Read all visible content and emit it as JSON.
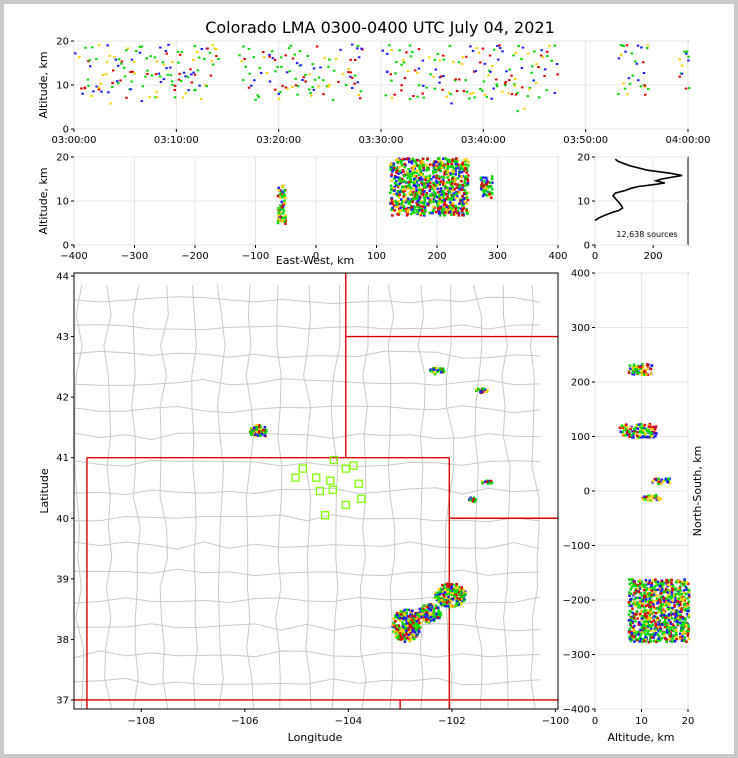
{
  "chart_data": {
    "type": "scatter",
    "title": "Colorado LMA 0300-0400 UTC July 04, 2021",
    "source_count_label": "12,638 sources",
    "colors": {
      "early": "#1a1aff",
      "mid": "#00d800",
      "late": "#ffd000",
      "latest": "#e00000",
      "border": "#e00000",
      "counties": "#c8c8c8",
      "stations": "#7fff00"
    },
    "panels": {
      "time_altitude": {
        "xlabel": "",
        "ylabel": "Altitude, km",
        "xlim": [
          "03:00:00",
          "04:00:00"
        ],
        "ylim": [
          0,
          20
        ],
        "xticks": [
          "03:00:00",
          "03:10:00",
          "03:20:00",
          "03:30:00",
          "03:40:00",
          "03:50:00",
          "04:00:00"
        ],
        "yticks": [
          "0",
          "10",
          "20"
        ],
        "active_intervals_min": [
          [
            0,
            14
          ],
          [
            16,
            28
          ],
          [
            30,
            47
          ],
          [
            53,
            56
          ],
          [
            59,
            60
          ]
        ]
      },
      "ew_altitude": {
        "xlabel": "East-West, km",
        "ylabel": "Altitude, km",
        "xlim": [
          -400,
          400
        ],
        "ylim": [
          0,
          20
        ],
        "xticks": [
          "−400",
          "−300",
          "−200",
          "−100",
          "0",
          "100",
          "200",
          "300",
          "400"
        ],
        "yticks": [
          "0",
          "10",
          "20"
        ],
        "clusters": [
          {
            "x": [
              -65,
              -52
            ],
            "z": [
              5,
              14
            ]
          },
          {
            "x": [
              120,
              250
            ],
            "z": [
              7,
              20
            ]
          },
          {
            "x": [
              270,
              290
            ],
            "z": [
              11,
              16
            ]
          }
        ]
      },
      "histogram": {
        "xticks": [
          "0",
          "200"
        ],
        "yticks": [
          "0",
          "10",
          "20"
        ],
        "xlim": [
          0,
          320
        ],
        "ylim": [
          0,
          20
        ],
        "profile": [
          [
            0,
            5.6
          ],
          [
            15,
            6.2
          ],
          [
            35,
            6.8
          ],
          [
            60,
            7.4
          ],
          [
            80,
            7.8
          ],
          [
            95,
            8.4
          ],
          [
            88,
            9.2
          ],
          [
            75,
            10.2
          ],
          [
            62,
            11.2
          ],
          [
            70,
            11.8
          ],
          [
            105,
            12.4
          ],
          [
            125,
            12.9
          ],
          [
            150,
            13.3
          ],
          [
            200,
            13.7
          ],
          [
            240,
            14.1
          ],
          [
            210,
            14.6
          ],
          [
            230,
            15.0
          ],
          [
            265,
            15.4
          ],
          [
            300,
            15.8
          ],
          [
            260,
            16.3
          ],
          [
            180,
            17.0
          ],
          [
            120,
            18.0
          ],
          [
            80,
            19.0
          ],
          [
            70,
            19.5
          ]
        ]
      },
      "plan_view": {
        "xlabel": "Longitude",
        "ylabel": "Latitude",
        "xlim": [
          -109.3,
          -99.95
        ],
        "ylim": [
          36.85,
          44.05
        ],
        "xticks": [
          "−108",
          "−106",
          "−104",
          "−102",
          "−100"
        ],
        "yticks": [
          "37",
          "38",
          "39",
          "40",
          "41",
          "42",
          "43",
          "44"
        ],
        "stations": [
          [
            -104.88,
            40.82
          ],
          [
            -105.02,
            40.67
          ],
          [
            -104.62,
            40.67
          ],
          [
            -104.28,
            40.96
          ],
          [
            -104.05,
            40.82
          ],
          [
            -103.9,
            40.87
          ],
          [
            -104.35,
            40.62
          ],
          [
            -103.8,
            40.57
          ],
          [
            -104.55,
            40.45
          ],
          [
            -104.3,
            40.47
          ],
          [
            -103.75,
            40.32
          ],
          [
            -104.05,
            40.22
          ],
          [
            -104.45,
            40.05
          ]
        ],
        "clusters": [
          {
            "lon": -105.75,
            "lat": 41.45,
            "w": 0.35,
            "h": 0.22
          },
          {
            "lon": -102.3,
            "lat": 42.45,
            "w": 0.3,
            "h": 0.12
          },
          {
            "lon": -101.45,
            "lat": 42.13,
            "w": 0.25,
            "h": 0.08
          },
          {
            "lon": -101.35,
            "lat": 40.62,
            "w": 0.22,
            "h": 0.06
          },
          {
            "lon": -101.62,
            "lat": 40.33,
            "w": 0.15,
            "h": 0.08
          },
          {
            "lon": -102.05,
            "lat": 38.75,
            "w": 0.6,
            "h": 0.4
          },
          {
            "lon": -102.9,
            "lat": 38.25,
            "w": 0.55,
            "h": 0.55
          },
          {
            "lon": -102.45,
            "lat": 38.45,
            "w": 0.45,
            "h": 0.3
          }
        ]
      },
      "ns_altitude": {
        "xlabel": "Altitude, km",
        "ylabel": "North-South, km",
        "xlim": [
          0,
          20
        ],
        "ylim": [
          -400,
          400
        ],
        "xticks": [
          "0",
          "10",
          "20"
        ],
        "yticks": [
          "400",
          "300",
          "200",
          "100",
          "0",
          "−100",
          "−200",
          "−300",
          "−400"
        ],
        "clusters": [
          {
            "z": [
              7,
              12
            ],
            "y": [
              215,
              235
            ]
          },
          {
            "z": [
              5,
              13
            ],
            "y": [
              100,
              125
            ]
          },
          {
            "z": [
              12,
              16
            ],
            "y": [
              15,
              25
            ]
          },
          {
            "z": [
              10,
              14
            ],
            "y": [
              -15,
              -5
            ]
          },
          {
            "z": [
              7,
              20
            ],
            "y": [
              -275,
              -160
            ]
          }
        ]
      }
    }
  }
}
